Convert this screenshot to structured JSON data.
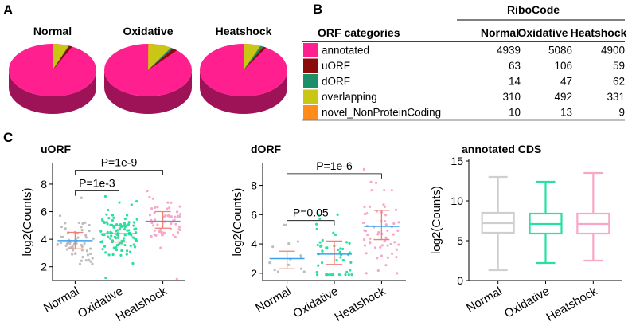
{
  "panel_labels": {
    "a": "A",
    "b": "B",
    "c": "C"
  },
  "colors": {
    "annotated": "#ff1f8e",
    "uORF": "#8b0a0a",
    "dORF": "#1c8f68",
    "overlapping": "#c9c615",
    "novel": "#ff8c1a",
    "point_normal": "#bdbdbd",
    "point_oxidative": "#29e0a2",
    "point_heatshock": "#f7a8c8",
    "errorbar": "#f08075",
    "median": "#3aa0f0",
    "box_normal": "#cfcfcf",
    "box_oxidative": "#29e0a2",
    "box_heatshock": "#f7a8c8"
  },
  "chart_data": [
    {
      "type": "pie",
      "panel": "A",
      "pies": [
        {
          "title": "Normal",
          "slices": [
            4939,
            63,
            14,
            310,
            10
          ]
        },
        {
          "title": "Oxidative",
          "slices": [
            5086,
            106,
            47,
            492,
            13
          ]
        },
        {
          "title": "Heatshock",
          "slices": [
            4900,
            59,
            62,
            331,
            9
          ]
        }
      ],
      "slice_labels": [
        "annotated",
        "uORF",
        "dORF",
        "overlapping",
        "novel_NonProteinCoding"
      ]
    },
    {
      "type": "table",
      "panel": "B",
      "group_header": "RiboCode",
      "row_header": "ORF categories",
      "columns": [
        "Normal",
        "Oxidative",
        "Heatshock"
      ],
      "rows": [
        {
          "label": "annotated",
          "color_key": "annotated",
          "values": [
            "4939",
            "5086",
            "4900"
          ]
        },
        {
          "label": "uORF",
          "color_key": "uORF",
          "values": [
            "63",
            "106",
            "59"
          ]
        },
        {
          "label": "dORF",
          "color_key": "dORF",
          "values": [
            "14",
            "47",
            "62"
          ]
        },
        {
          "label": "overlapping",
          "color_key": "overlapping",
          "values": [
            "310",
            "492",
            "331"
          ]
        },
        {
          "label": "novel_NonProteinCoding",
          "color_key": "novel",
          "values": [
            "10",
            "13",
            "9"
          ]
        }
      ]
    },
    {
      "type": "scatter",
      "panel": "C",
      "title": "uORF",
      "ylabel": "log2(Counts)",
      "ylim": [
        1,
        9.5
      ],
      "yticks": [
        2,
        4,
        6,
        8
      ],
      "categories": [
        "Normal",
        "Oxidative",
        "Heatshock"
      ],
      "groups": [
        {
          "median": 3.9,
          "q1": 3.3,
          "q3": 4.5,
          "n": 63,
          "min": 2.2,
          "max": 7.0
        },
        {
          "median": 4.4,
          "q1": 3.8,
          "q3": 5.0,
          "n": 106,
          "min": 1.2,
          "max": 7.1
        },
        {
          "median": 5.3,
          "q1": 4.8,
          "q3": 6.0,
          "n": 59,
          "min": 1.1,
          "max": 7.5
        }
      ],
      "comparisons": [
        {
          "label": "P=1e-3",
          "from": 0,
          "to": 1,
          "y": 7.5
        },
        {
          "label": "P=1e-9",
          "from": 0,
          "to": 2,
          "y": 9.0
        }
      ]
    },
    {
      "type": "scatter",
      "panel": "C",
      "title": "dORF",
      "ylabel": "log2(Counts)",
      "ylim": [
        1.5,
        9.5
      ],
      "yticks": [
        2,
        4,
        6,
        8
      ],
      "categories": [
        "Normal",
        "Oxidative",
        "Heatshock"
      ],
      "groups": [
        {
          "median": 3.0,
          "q1": 2.3,
          "q3": 3.5,
          "n": 14,
          "min": 2.1,
          "max": 5.3
        },
        {
          "median": 3.3,
          "q1": 2.6,
          "q3": 4.2,
          "n": 47,
          "min": 1.9,
          "max": 6.0
        },
        {
          "median": 5.2,
          "q1": 4.3,
          "q3": 6.3,
          "n": 62,
          "min": 2.0,
          "max": 9.1
        }
      ],
      "comparisons": [
        {
          "label": "P=0.05",
          "from": 0,
          "to": 1,
          "y": 5.6
        },
        {
          "label": "P=1e-6",
          "from": 0,
          "to": 2,
          "y": 8.8
        }
      ]
    },
    {
      "type": "box",
      "panel": "C",
      "title": "annotated CDS",
      "ylabel": "log2(Counts)",
      "ylim": [
        0,
        15.2
      ],
      "yticks": [
        0,
        5,
        10,
        15
      ],
      "categories": [
        "Normal",
        "Oxidative",
        "Heatshock"
      ],
      "boxes": [
        {
          "min": 1.3,
          "q1": 6.0,
          "median": 7.2,
          "q3": 8.5,
          "max": 13.0
        },
        {
          "min": 2.2,
          "q1": 5.9,
          "median": 7.1,
          "q3": 8.4,
          "max": 12.4
        },
        {
          "min": 2.5,
          "q1": 5.9,
          "median": 7.1,
          "q3": 8.4,
          "max": 13.5
        }
      ]
    }
  ]
}
